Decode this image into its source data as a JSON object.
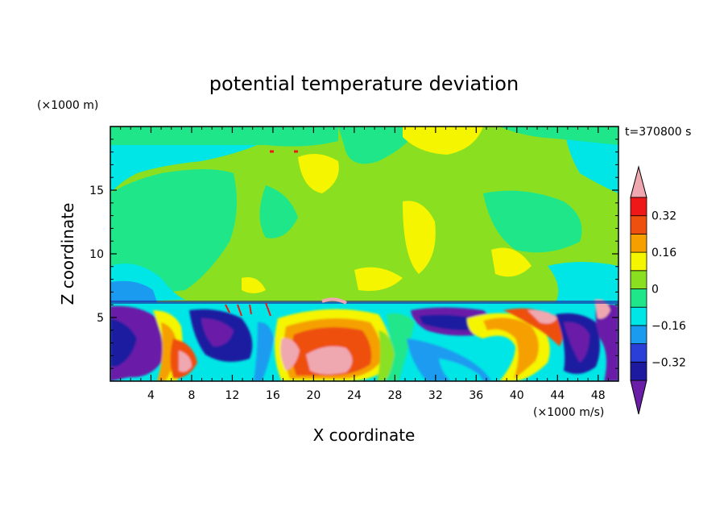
{
  "chart_data": {
    "type": "heatmap",
    "title": "potential temperature deviation",
    "xlabel": "X coordinate",
    "ylabel": "Z coordinate",
    "x_unit": "(×1000 m/s)",
    "y_unit": "(×1000 m)",
    "time_label": "t=370800 s",
    "xlim": [
      0,
      50
    ],
    "ylim": [
      0,
      20
    ],
    "x_ticks": [
      4,
      8,
      12,
      16,
      20,
      24,
      28,
      32,
      36,
      40,
      44,
      48
    ],
    "y_ticks": [
      5,
      10,
      15
    ],
    "colorbar": {
      "labels": [
        {
          "value": 0.32,
          "text": "0.32"
        },
        {
          "value": 0.16,
          "text": "0.16"
        },
        {
          "value": 0,
          "text": "0"
        },
        {
          "value": -0.16,
          "text": "−0.16"
        },
        {
          "value": -0.32,
          "text": "−0.32"
        }
      ],
      "levels": [
        -0.4,
        -0.32,
        -0.24,
        -0.16,
        -0.08,
        0,
        0.08,
        0.16,
        0.24,
        0.32,
        0.4
      ],
      "colors": [
        "#6a1ea8",
        "#1e1aa0",
        "#2a3fd8",
        "#1a9bf0",
        "#00e6e6",
        "#20e68a",
        "#8ae020",
        "#f5f500",
        "#f5a000",
        "#ee5010",
        "#ee1818",
        "#f0a8b0"
      ]
    }
  }
}
